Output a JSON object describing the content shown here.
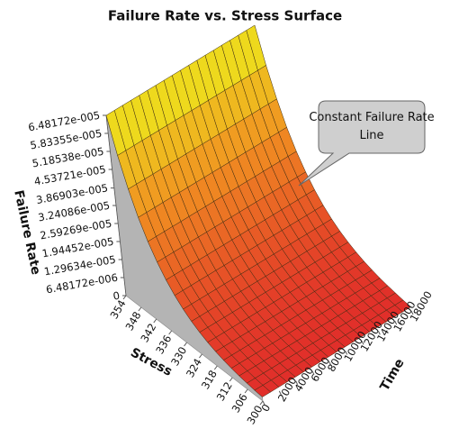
{
  "chart_data": {
    "type": "surface",
    "title": "Failure Rate vs. Stress Surface",
    "z_label": "Failure Rate",
    "stress_label": "Stress",
    "time_label": "Time",
    "annotation": "Constant Failure Rate Line",
    "stress": [
      300,
      303,
      306,
      309,
      312,
      315,
      318,
      321,
      324,
      327,
      330,
      333,
      336,
      339,
      342,
      345,
      348,
      351,
      354
    ],
    "time": [
      0,
      1000,
      2000,
      3000,
      4000,
      5000,
      6000,
      7000,
      8000,
      9000,
      10000,
      11000,
      12000,
      13000,
      14000,
      15000,
      16000,
      17000,
      18000
    ],
    "values": [
      1.456e-06,
      1.797e-06,
      2.221e-06,
      2.739e-06,
      3.382e-06,
      4.177e-06,
      5.158e-06,
      6.37e-06,
      7.867e-06,
      9.716e-06,
      1.199e-05,
      1.481e-05,
      1.829e-05,
      2.258e-05,
      2.788e-05,
      3.443e-05,
      4.251e-05,
      5.25e-05,
      6.48172e-05
    ],
    "zlim": [
      0,
      6.48172e-05
    ],
    "zticks": [
      0,
      {
        "value": 6.48172e-06,
        "label": "6.48172e-006"
      },
      {
        "value": 1.29634e-05,
        "label": "1.29634e-005"
      },
      {
        "value": 1.94452e-05,
        "label": "1.94452e-005"
      },
      {
        "value": 2.59269e-05,
        "label": "2.59269e-005"
      },
      {
        "value": 3.24086e-05,
        "label": "3.24086e-005"
      },
      {
        "value": 3.86903e-05,
        "label": "3.86903e-005"
      },
      {
        "value": 4.53721e-05,
        "label": "4.53721e-005"
      },
      {
        "value": 5.18538e-05,
        "label": "5.18538e-005"
      },
      {
        "value": 5.83355e-05,
        "label": "5.83355e-005"
      },
      {
        "value": 6.48172e-05,
        "label": "6.48172e-005"
      }
    ],
    "stresslim": [
      300,
      354
    ],
    "stressticks": [
      300,
      306,
      312,
      318,
      324,
      330,
      336,
      342,
      348,
      354
    ],
    "timelim": [
      0,
      18000
    ],
    "timeticks": [
      0,
      2000,
      4000,
      6000,
      8000,
      10000,
      12000,
      14000,
      16000,
      18000
    ],
    "colors": [
      "#e02a2a",
      "#f08a22",
      "#eeec1c"
    ],
    "wall_color": "#b4b4b4"
  }
}
